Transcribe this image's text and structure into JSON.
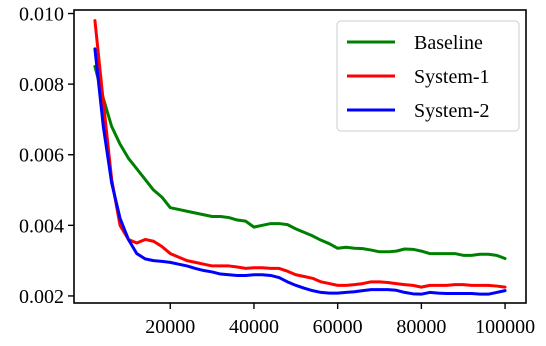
{
  "chart_data": {
    "type": "line",
    "xlabel": "",
    "ylabel": "",
    "xlim": [
      -3000,
      105000
    ],
    "ylim": [
      0.0018,
      0.0101
    ],
    "xticks": [
      {
        "value": 20000,
        "label": "20000"
      },
      {
        "value": 40000,
        "label": "40000"
      },
      {
        "value": 60000,
        "label": "60000"
      },
      {
        "value": 80000,
        "label": "80000"
      },
      {
        "value": 100000,
        "label": "100000"
      }
    ],
    "yticks": [
      {
        "value": 0.002,
        "label": "0.002"
      },
      {
        "value": 0.004,
        "label": "0.004"
      },
      {
        "value": 0.006,
        "label": "0.006"
      },
      {
        "value": 0.008,
        "label": "0.008"
      },
      {
        "value": 0.01,
        "label": "0.010"
      }
    ],
    "grid": false,
    "legend_position": "top-right",
    "series": [
      {
        "name": "Baseline",
        "color": "#008000",
        "x": [
          2000,
          4000,
          6000,
          8000,
          10000,
          12000,
          14000,
          16000,
          18000,
          20000,
          22000,
          24000,
          26000,
          28000,
          30000,
          32000,
          34000,
          36000,
          38000,
          40000,
          42000,
          44000,
          46000,
          48000,
          50000,
          52000,
          54000,
          56000,
          58000,
          60000,
          62000,
          64000,
          66000,
          68000,
          70000,
          72000,
          74000,
          76000,
          78000,
          80000,
          82000,
          84000,
          86000,
          88000,
          90000,
          92000,
          94000,
          96000,
          98000,
          100000
        ],
        "y": [
          0.0085,
          0.0076,
          0.0068,
          0.0063,
          0.0059,
          0.0056,
          0.0053,
          0.005,
          0.0048,
          0.0045,
          0.00445,
          0.0044,
          0.00435,
          0.0043,
          0.00425,
          0.00425,
          0.00422,
          0.00415,
          0.00412,
          0.00395,
          0.004,
          0.00405,
          0.00405,
          0.00402,
          0.0039,
          0.0038,
          0.0037,
          0.00358,
          0.00348,
          0.00335,
          0.00338,
          0.00335,
          0.00334,
          0.0033,
          0.00325,
          0.00325,
          0.00327,
          0.00333,
          0.00332,
          0.00327,
          0.0032,
          0.0032,
          0.0032,
          0.0032,
          0.00315,
          0.00315,
          0.00318,
          0.00318,
          0.00315,
          0.00306
        ]
      },
      {
        "name": "System-1",
        "color": "#ff0000",
        "x": [
          2000,
          4000,
          6000,
          8000,
          10000,
          12000,
          14000,
          16000,
          18000,
          20000,
          22000,
          24000,
          26000,
          28000,
          30000,
          32000,
          34000,
          36000,
          38000,
          40000,
          42000,
          44000,
          46000,
          48000,
          50000,
          52000,
          54000,
          56000,
          58000,
          60000,
          62000,
          64000,
          66000,
          68000,
          70000,
          72000,
          74000,
          76000,
          78000,
          80000,
          82000,
          84000,
          86000,
          88000,
          90000,
          92000,
          94000,
          96000,
          98000,
          100000
        ],
        "y": [
          0.0098,
          0.0075,
          0.0053,
          0.004,
          0.0036,
          0.0035,
          0.0036,
          0.00355,
          0.0034,
          0.0032,
          0.0031,
          0.003,
          0.00295,
          0.0029,
          0.00285,
          0.00285,
          0.00285,
          0.00282,
          0.00278,
          0.0028,
          0.0028,
          0.00278,
          0.00278,
          0.0027,
          0.0026,
          0.00255,
          0.0025,
          0.0024,
          0.00235,
          0.0023,
          0.0023,
          0.00232,
          0.00235,
          0.0024,
          0.0024,
          0.00238,
          0.00235,
          0.00232,
          0.0023,
          0.00225,
          0.0023,
          0.0023,
          0.0023,
          0.00232,
          0.00232,
          0.0023,
          0.0023,
          0.0023,
          0.00228,
          0.00225
        ]
      },
      {
        "name": "System-2",
        "color": "#0000ff",
        "x": [
          2000,
          4000,
          6000,
          8000,
          10000,
          12000,
          14000,
          16000,
          18000,
          20000,
          22000,
          24000,
          26000,
          28000,
          30000,
          32000,
          34000,
          36000,
          38000,
          40000,
          42000,
          44000,
          46000,
          48000,
          50000,
          52000,
          54000,
          56000,
          58000,
          60000,
          62000,
          64000,
          66000,
          68000,
          70000,
          72000,
          74000,
          76000,
          78000,
          80000,
          82000,
          84000,
          86000,
          88000,
          90000,
          92000,
          94000,
          96000,
          98000,
          100000
        ],
        "y": [
          0.009,
          0.0068,
          0.0052,
          0.0042,
          0.0036,
          0.0032,
          0.00305,
          0.003,
          0.00298,
          0.00295,
          0.0029,
          0.00285,
          0.00278,
          0.00272,
          0.00268,
          0.00262,
          0.0026,
          0.00258,
          0.00258,
          0.0026,
          0.0026,
          0.00258,
          0.00252,
          0.0024,
          0.0023,
          0.00222,
          0.00215,
          0.0021,
          0.00208,
          0.00208,
          0.0021,
          0.00212,
          0.00215,
          0.00218,
          0.00218,
          0.00218,
          0.00216,
          0.0021,
          0.00206,
          0.00205,
          0.0021,
          0.00208,
          0.00207,
          0.00207,
          0.00207,
          0.00207,
          0.00205,
          0.00205,
          0.0021,
          0.00215
        ]
      }
    ]
  }
}
